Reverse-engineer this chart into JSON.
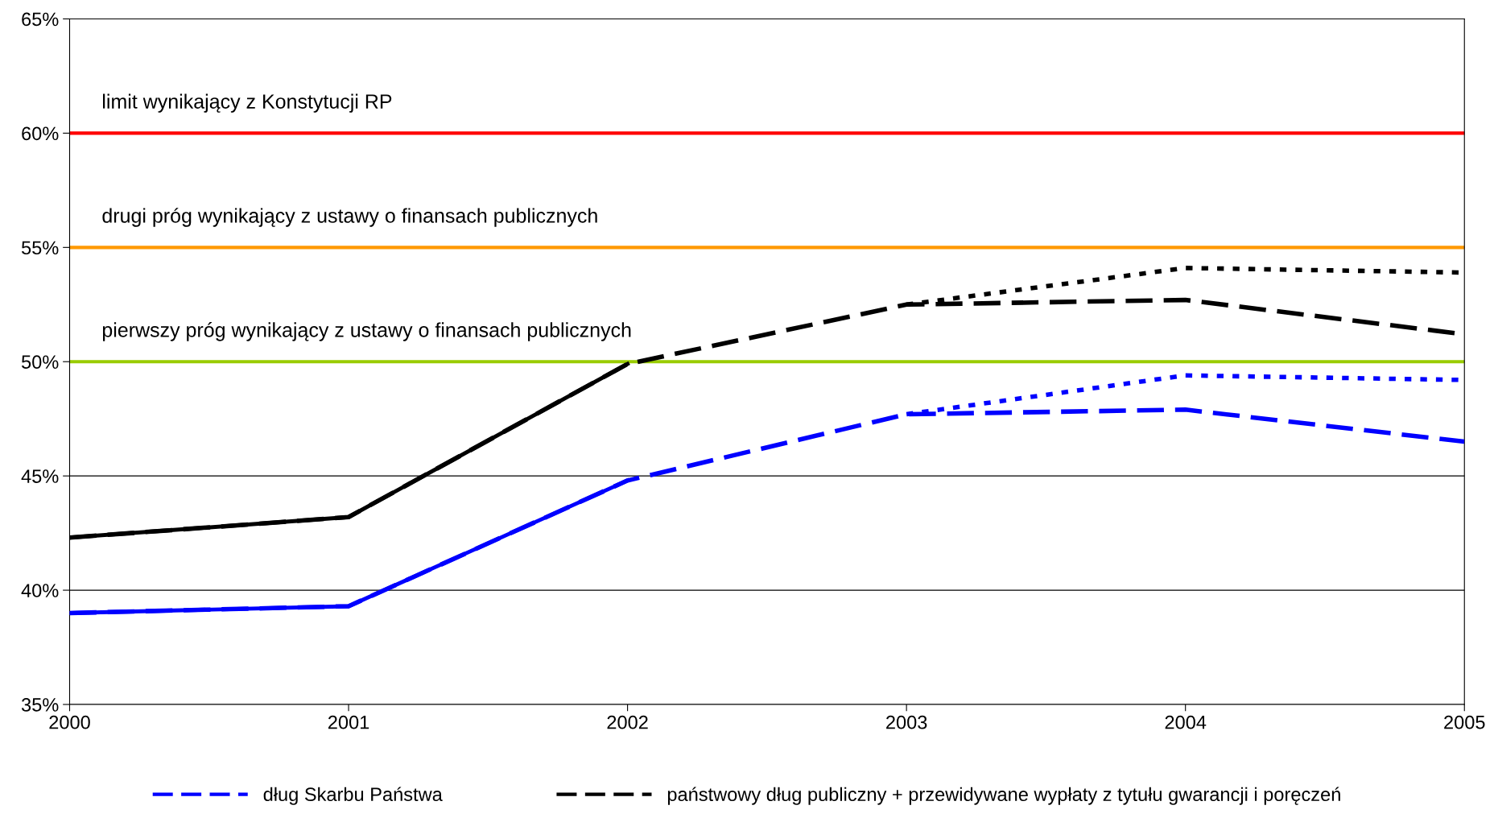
{
  "chart_data": {
    "type": "line",
    "x": [
      2000,
      2001,
      2002,
      2003,
      2004,
      2005
    ],
    "series": [
      {
        "color": "#0000ff",
        "line_style": "solid",
        "values": [
          39.0,
          39.3,
          44.8,
          null,
          null,
          null
        ]
      },
      {
        "color": "#0000ff",
        "line_style": "dotted",
        "values": [
          null,
          null,
          null,
          47.7,
          49.4,
          49.2
        ]
      },
      {
        "name": "dług Skarbu Państwa",
        "color": "#0000ff",
        "line_style": "dashed",
        "values": [
          39.0,
          39.3,
          44.8,
          47.7,
          47.9,
          46.5
        ]
      },
      {
        "color": "#000000",
        "line_style": "solid",
        "values": [
          42.3,
          43.2,
          49.9,
          null,
          null,
          null
        ]
      },
      {
        "color": "#000000",
        "line_style": "dotted",
        "values": [
          null,
          null,
          null,
          52.5,
          54.1,
          53.9
        ]
      },
      {
        "name": "państwowy dług publiczny + przewidywane wypłaty z tytułu gwarancji i poręczeń",
        "color": "#000000",
        "line_style": "dashed",
        "values": [
          42.3,
          43.2,
          49.9,
          52.5,
          52.7,
          51.2
        ]
      }
    ],
    "xlim": [
      2000,
      2005
    ],
    "xticks": [
      2000,
      2001,
      2002,
      2003,
      2004,
      2005
    ],
    "ylim": [
      35,
      65
    ],
    "yticks": [
      {
        "value": 35,
        "label": "35%"
      },
      {
        "value": 40,
        "label": "40%"
      },
      {
        "value": 45,
        "label": "45%"
      },
      {
        "value": 50,
        "label": "50%"
      },
      {
        "value": 55,
        "label": "55%"
      },
      {
        "value": 60,
        "label": "60%"
      },
      {
        "value": 65,
        "label": "65%"
      }
    ],
    "ref_lines": [
      {
        "axis": "y",
        "value": 60,
        "label": "limit wynikający z Konstytucji RP",
        "color": "#ff0000"
      },
      {
        "axis": "y",
        "value": 55,
        "label": "drugi próg wynikający z ustawy o finansach publicznych",
        "color": "#ff9900"
      },
      {
        "axis": "y",
        "value": 50,
        "label": "pierwszy próg wynikający z ustawy o finansach publicznych",
        "color": "#99cc00"
      }
    ],
    "grid": "y",
    "legend": "bottom",
    "marker": "none"
  }
}
